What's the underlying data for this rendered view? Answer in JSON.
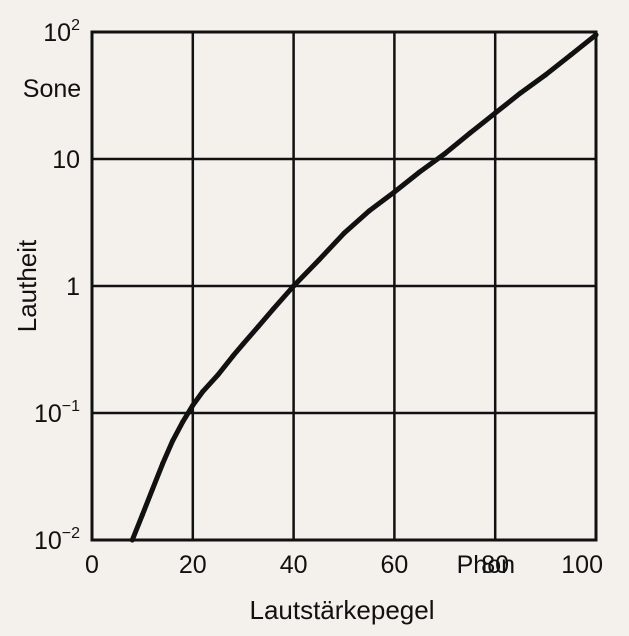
{
  "chart_data": {
    "type": "line",
    "title": "",
    "xlabel": "Lautstärkepegel",
    "ylabel": "Lautheit",
    "x_unit": "Phon",
    "y_unit": "Sone",
    "xlim": [
      0,
      100
    ],
    "ylim": [
      0.01,
      100
    ],
    "y_scale": "log",
    "grid": true,
    "legend": "none",
    "x_ticks": [
      {
        "value": 0,
        "label": "0"
      },
      {
        "value": 20,
        "label": "20"
      },
      {
        "value": 40,
        "label": "40"
      },
      {
        "value": 60,
        "label": "60"
      },
      {
        "value": 80,
        "label": "80"
      },
      {
        "value": 100,
        "label": "100"
      }
    ],
    "y_ticks": [
      {
        "value": 0.01,
        "base": "10",
        "exp": "−2"
      },
      {
        "value": 0.1,
        "base": "10",
        "exp": "−1"
      },
      {
        "value": 1,
        "base": "1",
        "exp": ""
      },
      {
        "value": 10,
        "base": "10",
        "exp": ""
      },
      {
        "value": 100,
        "base": "10",
        "exp": "2"
      }
    ],
    "series": [
      {
        "color": "#111111",
        "x": [
          8,
          10,
          12,
          14,
          16,
          18,
          20,
          22,
          25,
          28,
          30,
          33,
          36,
          40,
          45,
          50,
          55,
          60,
          65,
          70,
          75,
          80,
          85,
          90,
          95,
          100
        ],
        "y": [
          0.01,
          0.0158,
          0.0251,
          0.0398,
          0.0603,
          0.0851,
          0.115,
          0.148,
          0.2,
          0.282,
          0.35,
          0.48,
          0.66,
          1.0,
          1.6,
          2.6,
          3.9,
          5.5,
          7.9,
          11.0,
          16.0,
          23.0,
          33.0,
          46.0,
          66.0,
          95.0
        ]
      }
    ]
  }
}
